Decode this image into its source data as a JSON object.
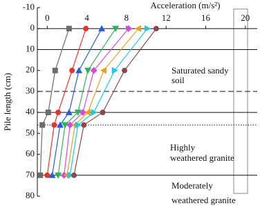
{
  "chart_data": {
    "type": "line",
    "x_label": "Acceleration (m/s²)",
    "y_label": "Pile length (cm)",
    "y": [
      0,
      20,
      40,
      46,
      70
    ],
    "series": [
      {
        "color": "#6b6b6b",
        "marker": "square",
        "values": [
          2.2,
          0.8,
          0.1,
          -0.5,
          -0.7
        ]
      },
      {
        "color": "#e8322b",
        "marker": "circle",
        "values": [
          3.9,
          2.5,
          1.1,
          0.7,
          0.0
        ]
      },
      {
        "color": "#2a5bd7",
        "marker": "triangle-up",
        "values": [
          5.5,
          3.2,
          2.2,
          1.3,
          0.5
        ]
      },
      {
        "color": "#2db35a",
        "marker": "triangle-down",
        "values": [
          6.9,
          4.1,
          3.1,
          1.8,
          1.1
        ]
      },
      {
        "color": "#d64bd6",
        "marker": "diamond",
        "values": [
          8.2,
          4.7,
          3.6,
          2.3,
          1.7
        ]
      },
      {
        "color": "#e8a020",
        "marker": "triangle-left",
        "values": [
          9.2,
          5.7,
          4.1,
          2.8,
          2.0
        ]
      },
      {
        "color": "#1ec8e0",
        "marker": "triangle-right",
        "values": [
          10.1,
          6.8,
          4.7,
          3.1,
          2.3
        ]
      },
      {
        "color": "#8b4a4a",
        "marker": "circle",
        "values": [
          11.0,
          7.8,
          5.6,
          3.7,
          2.7
        ]
      }
    ],
    "xlim": [
      -1,
      21.2
    ],
    "xticks": [
      0,
      4,
      8,
      12,
      16,
      20
    ],
    "ylim": [
      -10,
      80
    ],
    "yticks": [
      -10,
      0,
      10,
      20,
      30,
      40,
      50,
      60,
      70,
      80
    ],
    "y_inverted": true,
    "reference_lines": [
      {
        "value": 0,
        "style": "solid"
      },
      {
        "value": 10,
        "style": "solid"
      },
      {
        "value": 30,
        "style": "dashed"
      },
      {
        "value": 40,
        "style": "solid"
      },
      {
        "value": 46,
        "style": "dotted"
      },
      {
        "value": 70,
        "style": "solid"
      }
    ],
    "annotations": [
      "Saturated sandy",
      "soil",
      "Highly",
      "weathered granite",
      "Moderately",
      "weathered granite"
    ]
  }
}
